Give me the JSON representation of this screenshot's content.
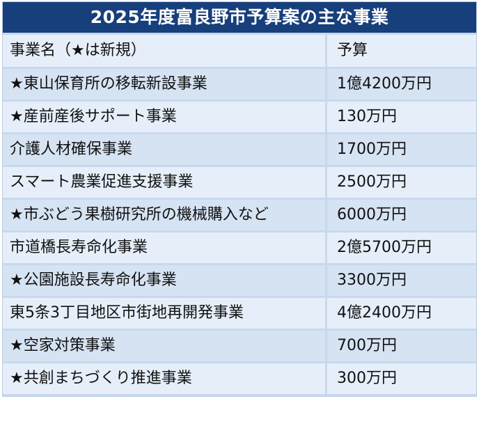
{
  "title": "2025年度富良野市予算案の主な事業",
  "table": {
    "headers": [
      "事業名（★は新規）",
      "予算"
    ],
    "rows": [
      {
        "name": "★東山保育所の移転新設事業",
        "budget": "1億4200万円"
      },
      {
        "name": "★産前産後サポート事業",
        "budget": "130万円"
      },
      {
        "name": "介護人材確保事業",
        "budget": "1700万円"
      },
      {
        "name": "スマート農業促進支援事業",
        "budget": "2500万円"
      },
      {
        "name": "★市ぶどう果樹研究所の機械購入など",
        "budget": "6000万円"
      },
      {
        "name": "市道橋長寿命化事業",
        "budget": "2億5700万円"
      },
      {
        "name": "★公園施設長寿命化事業",
        "budget": "3300万円"
      },
      {
        "name": "東5条3丁目地区市街地再開発事業",
        "budget": "4億2400万円"
      },
      {
        "name": "★空家対策事業",
        "budget": "700万円"
      },
      {
        "name": "★共創まちづくり推進事業",
        "budget": "300万円"
      }
    ]
  },
  "colors": {
    "title_background": "#173f7b",
    "title_text": "#ffffff",
    "row_light": "#e6eff9",
    "row_dark": "#d5e3f3",
    "grid": "#c7d9ee"
  }
}
